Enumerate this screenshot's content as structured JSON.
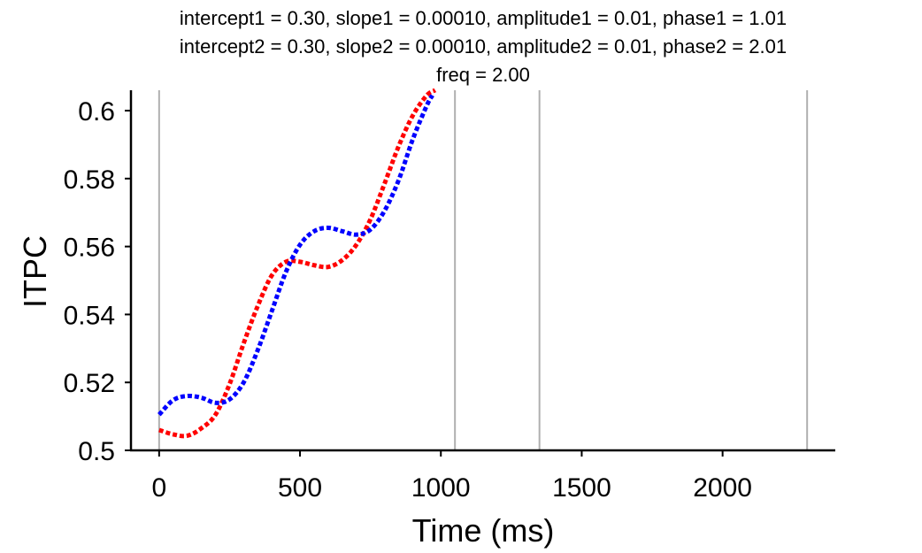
{
  "chart_data": {
    "type": "line",
    "title_lines": [
      "intercept1 = 0.30, slope1 = 0.00010, amplitude1 = 0.01, phase1 = 1.01",
      "intercept2 = 0.30, slope2 = 0.00010, amplitude2 = 0.01, phase2 = 2.01",
      "freq = 2.00"
    ],
    "xlabel": "Time (ms)",
    "ylabel": "ITPC",
    "xlim": [
      -100,
      2400
    ],
    "ylim": [
      0.5,
      0.606
    ],
    "x_ticks": [
      0,
      500,
      1000,
      1500,
      2000
    ],
    "x_tick_labels": [
      "0",
      "500",
      "1000",
      "1500",
      "2000"
    ],
    "y_ticks": [
      0.5,
      0.52,
      0.54,
      0.56,
      0.58,
      0.6
    ],
    "y_tick_labels": [
      "0.5",
      "0.52",
      "0.54",
      "0.56",
      "0.58",
      "0.6"
    ],
    "vertical_lines": [
      0,
      1050,
      1350,
      2300
    ],
    "vertical_line_color": "#b0b0b0",
    "grid": false,
    "series": [
      {
        "color": "#ff0000",
        "style": "dotted",
        "x": [
          0,
          50,
          100,
          150,
          200,
          250,
          300,
          350,
          400,
          450,
          500,
          550,
          600,
          650,
          700,
          750,
          800,
          850,
          900,
          950,
          980
        ],
        "y": [
          0.506,
          0.5047,
          0.5043,
          0.5065,
          0.5105,
          0.5195,
          0.5315,
          0.5425,
          0.5515,
          0.5555,
          0.5555,
          0.5545,
          0.554,
          0.556,
          0.5605,
          0.568,
          0.5785,
          0.5895,
          0.5985,
          0.6045,
          0.606
        ]
      },
      {
        "color": "#0000ff",
        "style": "dotted",
        "x": [
          0,
          50,
          100,
          150,
          200,
          250,
          300,
          350,
          400,
          450,
          500,
          550,
          600,
          650,
          700,
          750,
          800,
          850,
          900,
          950,
          970
        ],
        "y": [
          0.5105,
          0.5148,
          0.516,
          0.5155,
          0.514,
          0.515,
          0.52,
          0.5295,
          0.541,
          0.5525,
          0.5605,
          0.5645,
          0.5655,
          0.5645,
          0.5635,
          0.565,
          0.5705,
          0.5795,
          0.5915,
          0.6015,
          0.6045
        ]
      }
    ]
  }
}
